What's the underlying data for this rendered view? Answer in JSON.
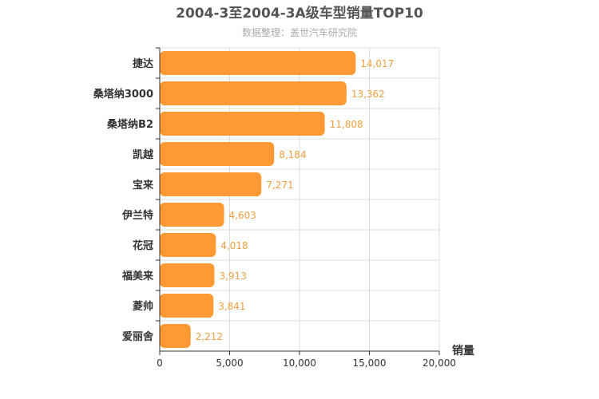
{
  "chart_data": {
    "type": "bar",
    "orientation": "horizontal",
    "title": "2004-3至2004-3A级车型销量TOP10",
    "subtitle": "数据整理：盖世汽车研究院",
    "xlabel": "销量",
    "ylabel": "",
    "categories": [
      "捷达",
      "桑塔纳3000",
      "桑塔纳B2",
      "凯越",
      "宝来",
      "伊兰特",
      "花冠",
      "福美来",
      "菱帅",
      "爱丽舍"
    ],
    "values": [
      14017,
      13362,
      11808,
      8184,
      7271,
      4603,
      4018,
      3913,
      3841,
      2212
    ],
    "value_labels": [
      "14,017",
      "13,362",
      "11,808",
      "8,184",
      "7,271",
      "4,603",
      "4,018",
      "3,913",
      "3,841",
      "2,212"
    ],
    "xlim": [
      0,
      20000
    ],
    "xticks": [
      0,
      5000,
      10000,
      15000,
      20000
    ],
    "xtick_labels": [
      "0",
      "5,000",
      "10,000",
      "15,000",
      "20,000"
    ],
    "grid": true,
    "legend": "none",
    "colors": {
      "bar": "#ff9933",
      "value_label": "#f0a040"
    }
  }
}
